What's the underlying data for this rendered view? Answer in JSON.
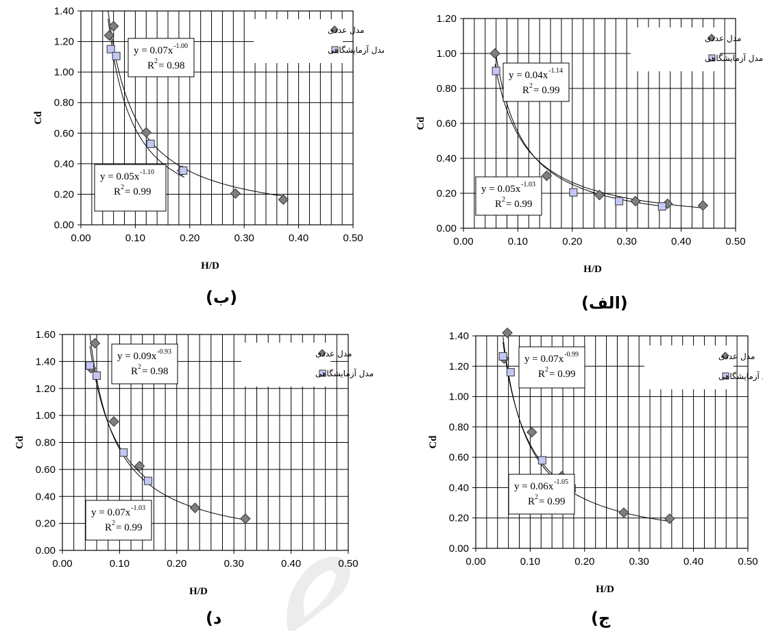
{
  "colors": {
    "numerical_marker": "#7f7f7f",
    "experimental_marker": "#c3c7f4",
    "grid": "#000000",
    "watermark": "#ececec"
  },
  "chart_data": [
    {
      "panel_label": "(الف)",
      "type": "scatter",
      "xlabel": "H/D",
      "ylabel": "Cd",
      "xlim": [
        0,
        0.5
      ],
      "ylim": [
        0,
        1.2
      ],
      "x_ticks": [
        "0.00",
        "0.10",
        "0.20",
        "0.30",
        "0.40",
        "0.50"
      ],
      "y_ticks": [
        "0.00",
        "0.20",
        "0.40",
        "0.60",
        "0.80",
        "1.00",
        "1.20"
      ],
      "legend": {
        "position": "top-right",
        "entries": [
          "مدل عددی",
          "مدل آزمایشگاهی"
        ]
      },
      "series": [
        {
          "name": "مدل عددی",
          "marker": "diamond",
          "x": [
            0.058,
            0.153,
            0.25,
            0.316,
            0.375,
            0.44
          ],
          "y": [
            1.0,
            0.3,
            0.19,
            0.155,
            0.14,
            0.13
          ],
          "fit": {
            "a": 0.05,
            "b": -1.03,
            "x_range": [
              0.058,
              0.44
            ]
          }
        },
        {
          "name": "مدل آزمایشگاهی",
          "marker": "square",
          "x": [
            0.06,
            0.202,
            0.286,
            0.365
          ],
          "y": [
            0.9,
            0.205,
            0.155,
            0.125
          ],
          "fit": {
            "a": 0.04,
            "b": -1.14,
            "x_range": [
              0.058,
              0.37
            ]
          }
        }
      ],
      "annotations": [
        {
          "line1": "y = 0.04x",
          "exp": "-1.14",
          "line2": "R",
          "r2": " = 0.99"
        },
        {
          "line1": "y = 0.05x",
          "exp": "-1.03",
          "line2": "R",
          "r2": " = 0.99"
        }
      ]
    },
    {
      "panel_label": "(ب)",
      "type": "scatter",
      "xlabel": "H/D",
      "ylabel": "Cd",
      "xlim": [
        0,
        0.5
      ],
      "ylim": [
        0,
        1.4
      ],
      "x_ticks": [
        "0.00",
        "0.10",
        "0.20",
        "0.30",
        "0.40",
        "0.50"
      ],
      "y_ticks": [
        "0.00",
        "0.20",
        "0.40",
        "0.60",
        "0.80",
        "1.00",
        "1.20",
        "1.40"
      ],
      "legend": {
        "position": "top-right",
        "entries": [
          "مدل عددی",
          "مدل آزمایشگاهی"
        ]
      },
      "series": [
        {
          "name": "مدل عددی",
          "marker": "diamond",
          "x": [
            0.052,
            0.06,
            0.12,
            0.186,
            0.284,
            0.372
          ],
          "y": [
            1.24,
            1.3,
            0.605,
            0.355,
            0.205,
            0.165
          ],
          "fit": {
            "a": 0.07,
            "b": -1.0,
            "x_range": [
              0.05,
              0.372
            ]
          }
        },
        {
          "name": "مدل آزمایشگاهی",
          "marker": "square",
          "x": [
            0.055,
            0.065,
            0.128,
            0.188
          ],
          "y": [
            1.15,
            1.105,
            0.53,
            0.355
          ],
          "fit": {
            "a": 0.05,
            "b": -1.1,
            "x_range": [
              0.05,
              0.19
            ]
          }
        }
      ],
      "annotations": [
        {
          "line1": "y = 0.07x",
          "exp": "-1.00",
          "line2": "R",
          "r2": " = 0.98"
        },
        {
          "line1": "y = 0.05x",
          "exp": "-1.10",
          "line2": "R",
          "r2": " = 0.99"
        }
      ]
    },
    {
      "panel_label": "(ج",
      "type": "scatter",
      "xlabel": "H/D",
      "ylabel": "Cd",
      "xlim": [
        0,
        0.5
      ],
      "ylim": [
        0,
        1.4
      ],
      "x_ticks": [
        "0.00",
        "0.10",
        "0.20",
        "0.30",
        "0.40",
        "0.50"
      ],
      "y_ticks": [
        "0.00",
        "0.20",
        "0.40",
        "0.60",
        "0.80",
        "1.00",
        "1.20",
        "1.40"
      ],
      "legend": {
        "position": "top-right",
        "entries": [
          "مدل عددی",
          "مدل آزمایشگاهی"
        ]
      },
      "series": [
        {
          "name": "مدل عددی",
          "marker": "diamond",
          "x": [
            0.052,
            0.058,
            0.103,
            0.158,
            0.272,
            0.356
          ],
          "y": [
            1.25,
            1.42,
            0.765,
            0.475,
            0.235,
            0.195
          ],
          "fit": {
            "a": 0.06,
            "b": -1.05,
            "x_range": [
              0.05,
              0.356
            ]
          }
        },
        {
          "name": "مدل آزمایشگاهی",
          "marker": "square",
          "x": [
            0.05,
            0.064,
            0.122,
            0.176
          ],
          "y": [
            1.265,
            1.16,
            0.58,
            0.395
          ],
          "fit": {
            "a": 0.07,
            "b": -0.99,
            "x_range": [
              0.05,
              0.18
            ]
          }
        }
      ],
      "annotations": [
        {
          "line1": "y = 0.07x",
          "exp": "-0.99",
          "line2": "R",
          "r2": " = 0.99"
        },
        {
          "line1": "y = 0.06x",
          "exp": "-1.05",
          "line2": "R",
          "r2": " = 0.99"
        }
      ]
    },
    {
      "panel_label": "(د",
      "type": "scatter",
      "xlabel": "H/D",
      "ylabel": "Cd",
      "xlim": [
        0,
        0.5
      ],
      "ylim": [
        0,
        1.6
      ],
      "x_ticks": [
        "0.00",
        "0.10",
        "0.20",
        "0.30",
        "0.40",
        "0.50"
      ],
      "y_ticks": [
        "0.00",
        "0.20",
        "0.40",
        "0.60",
        "0.80",
        "1.00",
        "1.20",
        "1.40",
        "1.60"
      ],
      "legend": {
        "position": "top-right",
        "entries": [
          "مدل عددی",
          "مدل آزمایشگاهی"
        ]
      },
      "series": [
        {
          "name": "مدل عددی",
          "marker": "diamond",
          "x": [
            0.05,
            0.057,
            0.09,
            0.135,
            0.232,
            0.32
          ],
          "y": [
            1.35,
            1.535,
            0.955,
            0.625,
            0.315,
            0.235
          ],
          "fit": {
            "a": 0.07,
            "b": -1.03,
            "x_range": [
              0.048,
              0.32
            ]
          }
        },
        {
          "name": "مدل آزمایشگاهی",
          "marker": "square",
          "x": [
            0.048,
            0.06,
            0.107,
            0.15
          ],
          "y": [
            1.37,
            1.295,
            0.725,
            0.515
          ],
          "fit": {
            "a": 0.09,
            "b": -0.93,
            "x_range": [
              0.048,
              0.15
            ]
          }
        }
      ],
      "annotations": [
        {
          "line1": "y = 0.09x",
          "exp": "-0.93",
          "line2": "R",
          "r2": " = 0.98"
        },
        {
          "line1": "y = 0.07x",
          "exp": "-1.03",
          "line2": "R",
          "r2": " = 0.99"
        }
      ]
    }
  ]
}
